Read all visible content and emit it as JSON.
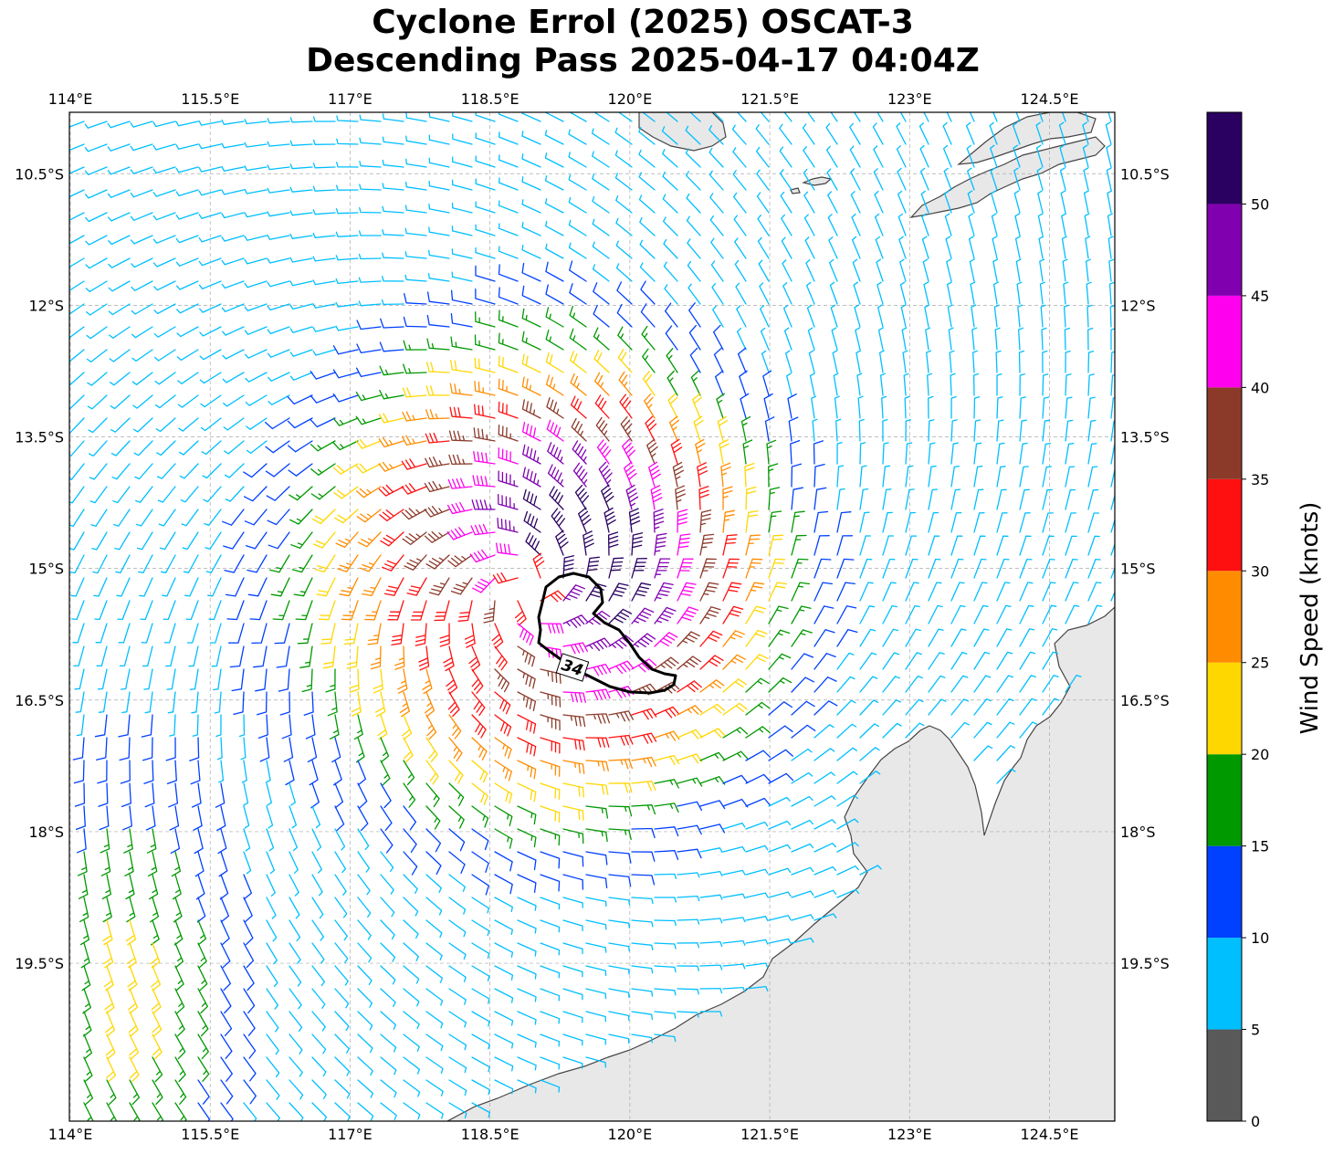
{
  "title": {
    "line1": "Cyclone Errol (2025) OSCAT-3",
    "line2": "Descending Pass 2025-04-17 04:04Z"
  },
  "map": {
    "lon_range": [
      113.99,
      125.2
    ],
    "lat_range": [
      -21.3,
      -9.8
    ],
    "lon_ticks": [
      114,
      115.5,
      117,
      118.5,
      120,
      121.5,
      123,
      124.5
    ],
    "lon_tick_labels": [
      "114°E",
      "115.5°E",
      "117°E",
      "118.5°E",
      "120°E",
      "121.5°E",
      "123°E",
      "124.5°E"
    ],
    "lat_ticks": [
      -10.5,
      -12,
      -13.5,
      -15,
      -16.5,
      -18,
      -19.5
    ],
    "lat_tick_labels": [
      "10.5°S",
      "12°S",
      "13.5°S",
      "15°S",
      "16.5°S",
      "18°S",
      "19.5°S"
    ],
    "gridlines": true,
    "land_color": "#e8e8e8",
    "coast_color": "#444444",
    "storm_center": {
      "lon": 118.9,
      "lat": -15.25
    },
    "contour_34kt_label": "34",
    "contour_34kt_color": "#000000"
  },
  "colorbar": {
    "label": "Wind Speed (knots)",
    "levels": [
      0,
      5,
      10,
      15,
      20,
      25,
      30,
      35,
      40,
      45,
      50,
      55
    ],
    "tick_labels": [
      "0",
      "5",
      "10",
      "15",
      "20",
      "25",
      "30",
      "35",
      "40",
      "45",
      "50"
    ],
    "colors": [
      "#595959",
      "#00bfff",
      "#0040ff",
      "#009900",
      "#ffd700",
      "#ff8c00",
      "#ff1010",
      "#8b3a2a",
      "#ff00ee",
      "#8000b0",
      "#2a0060"
    ]
  }
}
